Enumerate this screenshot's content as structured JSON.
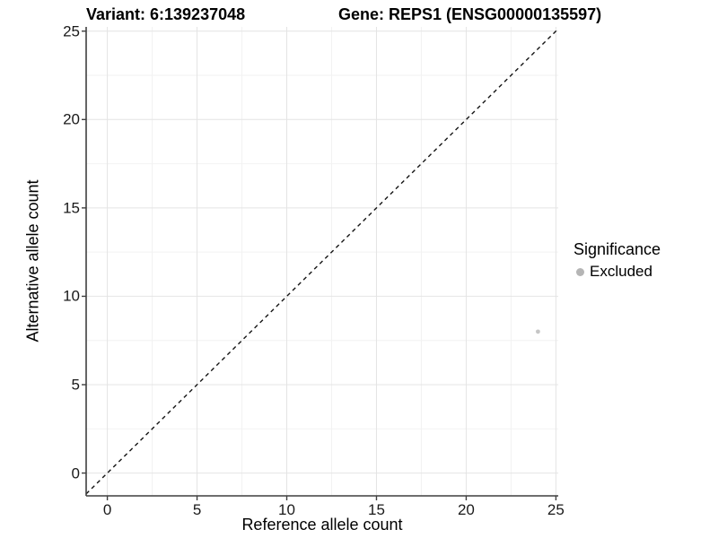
{
  "header": {
    "variant_title": "Variant: 6:139237048",
    "gene_title": "Gene: REPS1 (ENSG00000135597)"
  },
  "chart_data": {
    "type": "scatter",
    "xlabel": "Reference allele count",
    "ylabel": "Alternative allele count",
    "xlim": [
      -1.18,
      25.13
    ],
    "ylim": [
      -1.29,
      25.24
    ],
    "xticks": [
      0,
      5,
      10,
      15,
      20,
      25
    ],
    "yticks": [
      0,
      5,
      10,
      15,
      20,
      25
    ],
    "xticks_minor": [
      2.5,
      7.5,
      12.5,
      17.5,
      22.5
    ],
    "yticks_minor": [
      2.5,
      7.5,
      12.5,
      17.5,
      22.5
    ],
    "grid": "major+minor",
    "identity_line": {
      "equation": "y = x",
      "style": "dashed"
    },
    "series": [
      {
        "name": "Excluded",
        "color": "#bebebe",
        "points": [
          {
            "x": 24,
            "y": 8
          }
        ]
      }
    ]
  },
  "legend": {
    "title": "Significance",
    "position": "right",
    "items": [
      {
        "label": "Excluded",
        "color": "#b5b5b5",
        "marker": "circle"
      }
    ]
  },
  "style": {
    "background": "#ffffff",
    "axis_line_color": "#3f3f3f",
    "grid_major_color": "#e4e4e4",
    "grid_minor_color": "#f2f2f2",
    "diagonal_color": "#141414",
    "point_color": "#c6c6c6",
    "text_color": "#000000",
    "tick_label_color": "#1a1a1a"
  }
}
